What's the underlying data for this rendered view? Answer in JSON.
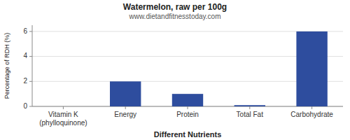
{
  "chart_data": {
    "type": "bar",
    "title": "Watermelon, raw per 100g",
    "subtitle": "www.dietandfitnesstoday.com",
    "xlabel": "Different Nutrients",
    "ylabel": "Percentage of RDH (%)",
    "categories": [
      "Vitamin K (phylloquinone)",
      "Energy",
      "Protein",
      "Total Fat",
      "Carbohydrate"
    ],
    "values": [
      0.0,
      2.0,
      1.0,
      0.1,
      6.0
    ],
    "color": "#2e4d9e",
    "ylim": [
      0,
      6.5
    ],
    "yticks": [
      0,
      2,
      4,
      6
    ],
    "grid": true
  }
}
